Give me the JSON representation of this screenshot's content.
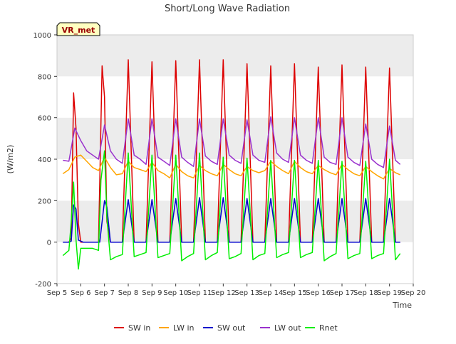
{
  "chart_data": {
    "type": "line",
    "title": "Short/Long Wave Radiation",
    "xlabel": "Time",
    "ylabel": "(W/m2)",
    "site_label": "VR_met",
    "xlim": [
      5,
      20
    ],
    "ylim": [
      -200,
      1000
    ],
    "x_ticks": [
      5,
      6,
      7,
      8,
      9,
      10,
      11,
      12,
      13,
      14,
      15,
      16,
      17,
      18,
      19,
      20
    ],
    "x_tick_labels": [
      "Sep 5",
      "Sep 6",
      "Sep 7",
      "Sep 8",
      "Sep 9",
      "Sep 10",
      "Sep 11",
      "Sep 12",
      "Sep 13",
      "Sep 14",
      "Sep 15",
      "Sep 16",
      "Sep 17",
      "Sep 18",
      "Sep 19",
      "Sep 20"
    ],
    "y_ticks": [
      -200,
      0,
      200,
      400,
      600,
      800,
      1000
    ],
    "y_tick_labels": [
      "-200",
      "0",
      "200",
      "400",
      "600",
      "800",
      "1000"
    ],
    "grid": "horizontal alternating bands",
    "legend_position": "bottom",
    "series_colors": {
      "SW in": "#dd0000",
      "LW in": "#ffa500",
      "SW out": "#0000cc",
      "LW out": "#9a32cd",
      "Rnet": "#00ee00"
    },
    "series": [
      {
        "name": "SW in",
        "x": [
          5.25,
          5.35,
          5.5,
          5.6,
          5.7,
          5.8,
          5.9,
          6.0,
          6.1,
          6.25,
          6.5,
          6.75,
          6.9,
          7.0,
          7.1,
          7.25,
          7.5,
          7.75,
          8.0,
          8.25,
          8.5,
          8.75,
          9.0,
          9.25,
          9.5,
          9.75,
          10.0,
          10.25,
          10.5,
          10.75,
          11.0,
          11.25,
          11.5,
          11.75,
          12.0,
          12.25,
          12.5,
          12.75,
          13.0,
          13.25,
          13.5,
          13.75,
          14.0,
          14.25,
          14.5,
          14.75,
          15.0,
          15.25,
          15.5,
          15.75,
          16.0,
          16.25,
          16.5,
          16.75,
          17.0,
          17.25,
          17.5,
          17.75,
          18.0,
          18.25,
          18.5,
          18.75,
          19.0,
          19.25,
          19.45
        ],
        "values": [
          0,
          0,
          0,
          20,
          720,
          550,
          90,
          0,
          0,
          0,
          0,
          0,
          850,
          700,
          100,
          0,
          0,
          0,
          880,
          0,
          0,
          0,
          870,
          0,
          0,
          0,
          875,
          0,
          0,
          0,
          880,
          0,
          0,
          0,
          880,
          0,
          0,
          0,
          860,
          0,
          0,
          0,
          850,
          0,
          0,
          0,
          860,
          0,
          0,
          0,
          845,
          0,
          0,
          0,
          855,
          0,
          0,
          0,
          845,
          0,
          0,
          0,
          840,
          0,
          0
        ]
      },
      {
        "name": "LW in",
        "x": [
          5.25,
          5.5,
          5.75,
          6.0,
          6.25,
          6.5,
          6.75,
          7.0,
          7.25,
          7.5,
          7.75,
          8.0,
          8.25,
          8.5,
          8.75,
          9.0,
          9.25,
          9.5,
          9.75,
          10.0,
          10.25,
          10.5,
          10.75,
          11.0,
          11.25,
          11.5,
          11.75,
          12.0,
          12.25,
          12.5,
          12.75,
          13.0,
          13.25,
          13.5,
          13.75,
          14.0,
          14.25,
          14.5,
          14.75,
          15.0,
          15.25,
          15.5,
          15.75,
          16.0,
          16.25,
          16.5,
          16.75,
          17.0,
          17.25,
          17.5,
          17.75,
          18.0,
          18.25,
          18.5,
          18.75,
          19.0,
          19.25,
          19.45
        ],
        "values": [
          330,
          350,
          410,
          420,
          390,
          360,
          345,
          410,
          360,
          325,
          330,
          390,
          360,
          350,
          340,
          385,
          345,
          330,
          310,
          375,
          340,
          320,
          310,
          370,
          345,
          330,
          320,
          375,
          350,
          330,
          320,
          365,
          345,
          335,
          345,
          390,
          365,
          345,
          330,
          390,
          360,
          340,
          330,
          370,
          350,
          335,
          325,
          375,
          350,
          330,
          320,
          365,
          340,
          320,
          305,
          355,
          335,
          325
        ]
      },
      {
        "name": "SW out",
        "x": [
          5.25,
          5.5,
          5.6,
          5.7,
          5.8,
          5.9,
          6.1,
          6.5,
          6.8,
          7.0,
          7.1,
          7.25,
          7.5,
          7.75,
          8.0,
          8.25,
          8.5,
          8.75,
          9.0,
          9.25,
          9.5,
          9.75,
          10.0,
          10.25,
          10.5,
          10.75,
          11.0,
          11.25,
          11.5,
          11.75,
          12.0,
          12.25,
          12.5,
          12.75,
          13.0,
          13.25,
          13.5,
          13.75,
          14.0,
          14.25,
          14.5,
          14.75,
          15.0,
          15.25,
          15.5,
          15.75,
          16.0,
          16.25,
          16.5,
          16.75,
          17.0,
          17.25,
          17.5,
          17.75,
          18.0,
          18.25,
          18.5,
          18.75,
          19.0,
          19.25,
          19.45
        ],
        "values": [
          0,
          0,
          5,
          180,
          160,
          10,
          0,
          0,
          0,
          200,
          170,
          0,
          0,
          0,
          205,
          0,
          0,
          0,
          205,
          0,
          0,
          0,
          210,
          0,
          0,
          0,
          215,
          0,
          0,
          0,
          215,
          0,
          0,
          0,
          210,
          0,
          0,
          0,
          210,
          0,
          0,
          0,
          210,
          0,
          0,
          0,
          210,
          0,
          0,
          0,
          210,
          0,
          0,
          0,
          210,
          0,
          0,
          0,
          210,
          0,
          0
        ]
      },
      {
        "name": "LW out",
        "x": [
          5.25,
          5.5,
          5.75,
          6.0,
          6.25,
          6.5,
          6.75,
          7.0,
          7.25,
          7.5,
          7.75,
          8.0,
          8.25,
          8.5,
          8.75,
          9.0,
          9.25,
          9.5,
          9.75,
          10.0,
          10.25,
          10.5,
          10.75,
          11.0,
          11.25,
          11.5,
          11.75,
          12.0,
          12.25,
          12.5,
          12.75,
          13.0,
          13.25,
          13.5,
          13.75,
          14.0,
          14.25,
          14.5,
          14.75,
          15.0,
          15.25,
          15.5,
          15.75,
          16.0,
          16.25,
          16.5,
          16.75,
          17.0,
          17.25,
          17.5,
          17.75,
          18.0,
          18.25,
          18.5,
          18.75,
          19.0,
          19.25,
          19.45
        ],
        "values": [
          395,
          390,
          550,
          490,
          440,
          420,
          400,
          565,
          440,
          400,
          380,
          595,
          420,
          400,
          375,
          595,
          410,
          390,
          370,
          595,
          410,
          385,
          365,
          595,
          415,
          390,
          375,
          595,
          420,
          395,
          380,
          590,
          420,
          395,
          385,
          605,
          430,
          400,
          385,
          600,
          420,
          395,
          380,
          600,
          410,
          385,
          375,
          600,
          410,
          385,
          370,
          570,
          400,
          375,
          360,
          560,
          395,
          375
        ]
      },
      {
        "name": "Rnet",
        "x": [
          5.25,
          5.5,
          5.6,
          5.7,
          5.8,
          5.9,
          6.0,
          6.25,
          6.5,
          6.75,
          6.85,
          7.0,
          7.1,
          7.25,
          7.5,
          7.75,
          8.0,
          8.25,
          8.5,
          8.75,
          9.0,
          9.25,
          9.5,
          9.75,
          10.0,
          10.25,
          10.5,
          10.75,
          11.0,
          11.25,
          11.5,
          11.75,
          12.0,
          12.25,
          12.5,
          12.75,
          13.0,
          13.25,
          13.5,
          13.75,
          14.0,
          14.25,
          14.5,
          14.75,
          15.0,
          15.25,
          15.5,
          15.75,
          16.0,
          16.25,
          16.5,
          16.75,
          17.0,
          17.25,
          17.5,
          17.75,
          18.0,
          18.25,
          18.5,
          18.75,
          19.0,
          19.25,
          19.45
        ],
        "values": [
          -65,
          -40,
          100,
          290,
          10,
          -130,
          -30,
          -30,
          -30,
          -40,
          300,
          440,
          120,
          -85,
          -70,
          -60,
          430,
          -70,
          -60,
          -50,
          420,
          -75,
          -65,
          -55,
          420,
          -90,
          -70,
          -55,
          430,
          -85,
          -65,
          -50,
          410,
          -80,
          -70,
          -55,
          405,
          -85,
          -65,
          -55,
          395,
          -75,
          -60,
          -50,
          395,
          -75,
          -60,
          -50,
          395,
          -90,
          -70,
          -55,
          390,
          -80,
          -65,
          -55,
          390,
          -80,
          -65,
          -55,
          400,
          -85,
          -55
        ]
      }
    ]
  }
}
